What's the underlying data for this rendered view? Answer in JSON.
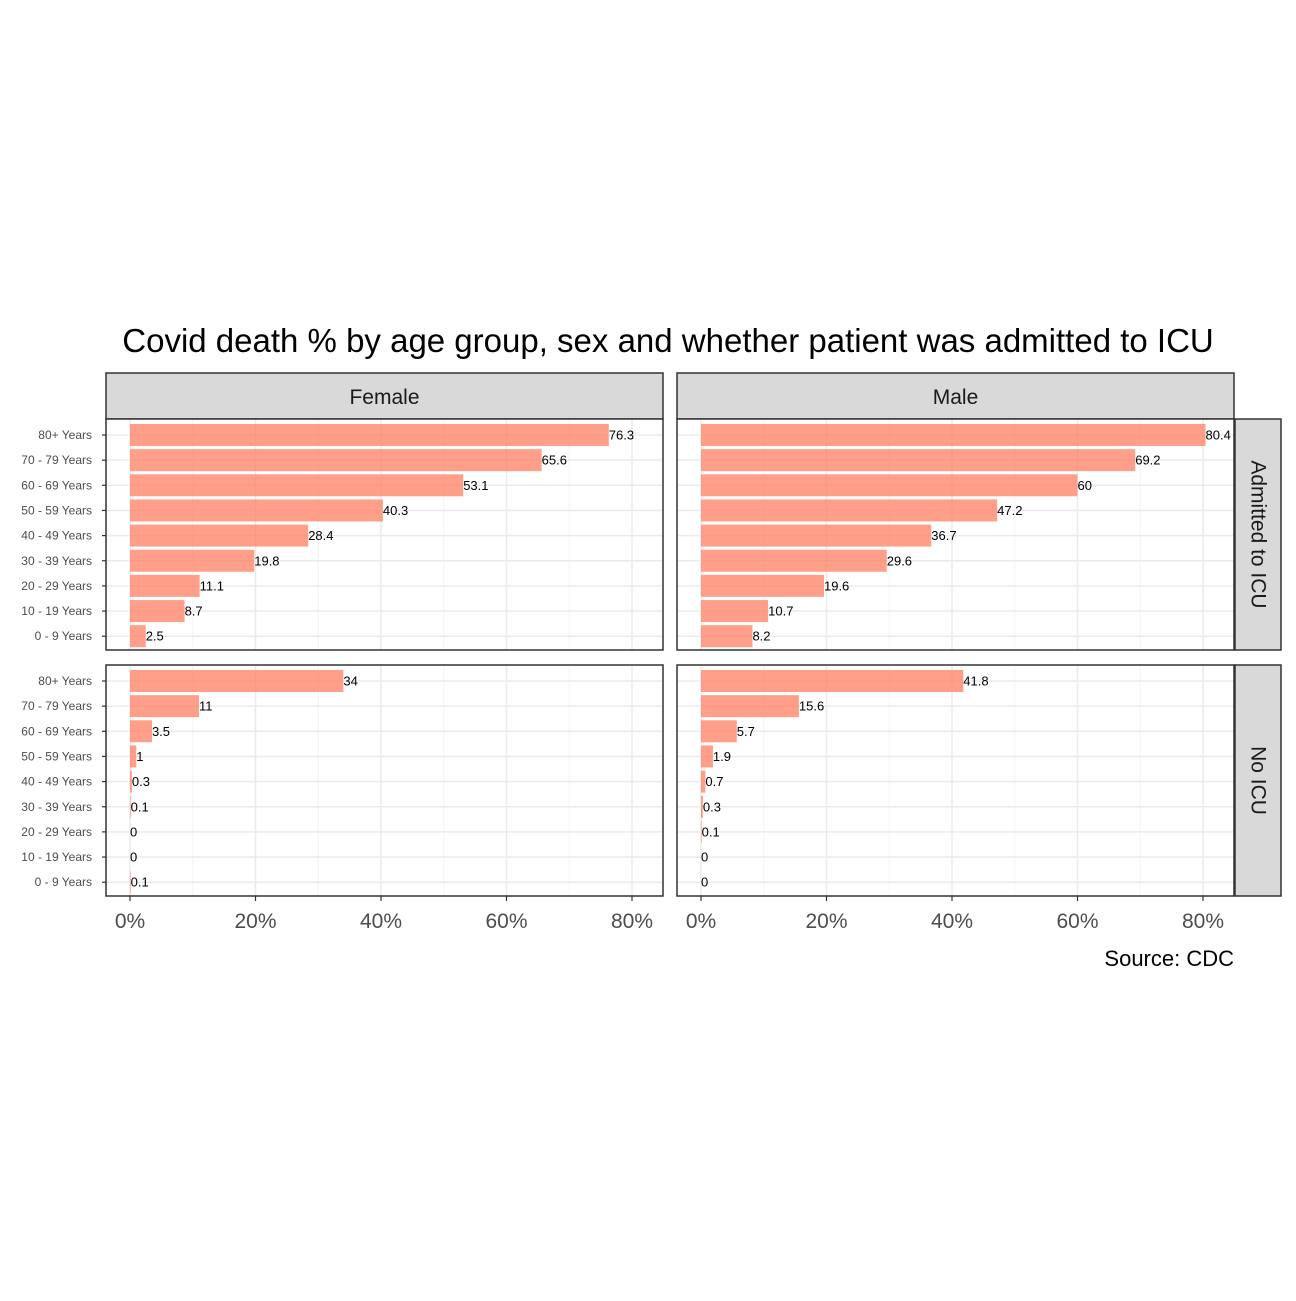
{
  "chart_data": {
    "type": "bar",
    "orientation": "horizontal",
    "title": "Covid death % by age group, sex and whether patient was admitted to ICU",
    "caption": "Source: CDC",
    "categories": [
      "80+ Years",
      "70 - 79 Years",
      "60 - 69 Years",
      "50 - 59 Years",
      "40 - 49 Years",
      "30 - 39 Years",
      "20 - 29 Years",
      "10 - 19 Years",
      "0 - 9 Years"
    ],
    "column_facets": [
      "Female",
      "Male"
    ],
    "row_facets": [
      "Admitted to ICU",
      "No ICU"
    ],
    "xlim": [
      0,
      85
    ],
    "x_ticks": [
      0,
      20,
      40,
      60,
      80
    ],
    "x_tick_labels": [
      "0%",
      "20%",
      "40%",
      "60%",
      "80%"
    ],
    "bar_color": "#FF7F62",
    "grid": true,
    "panels": [
      {
        "sex": "Female",
        "icu": "Admitted to ICU",
        "values": [
          76.3,
          65.6,
          53.1,
          40.3,
          28.4,
          19.8,
          11.1,
          8.7,
          2.5
        ],
        "labels": [
          "76.3",
          "65.6",
          "53.1",
          "40.3",
          "28.4",
          "19.8",
          "11.1",
          "8.7",
          "2.5"
        ]
      },
      {
        "sex": "Male",
        "icu": "Admitted to ICU",
        "values": [
          80.4,
          69.2,
          60,
          47.2,
          36.7,
          29.6,
          19.6,
          10.7,
          8.2
        ],
        "labels": [
          "80.4",
          "69.2",
          "60",
          "47.2",
          "36.7",
          "29.6",
          "19.6",
          "10.7",
          "8.2"
        ]
      },
      {
        "sex": "Female",
        "icu": "No ICU",
        "values": [
          34,
          11,
          3.5,
          1,
          0.3,
          0.1,
          0,
          0,
          0.1
        ],
        "labels": [
          "34",
          "11",
          "3.5",
          "1",
          "0.3",
          "0.1",
          "0",
          "0",
          "0.1"
        ]
      },
      {
        "sex": "Male",
        "icu": "No ICU",
        "values": [
          41.8,
          15.6,
          5.7,
          1.9,
          0.7,
          0.3,
          0.1,
          0,
          0
        ],
        "labels": [
          "41.8",
          "15.6",
          "5.7",
          "1.9",
          "0.7",
          "0.3",
          "0.1",
          "0",
          "0"
        ]
      }
    ]
  }
}
